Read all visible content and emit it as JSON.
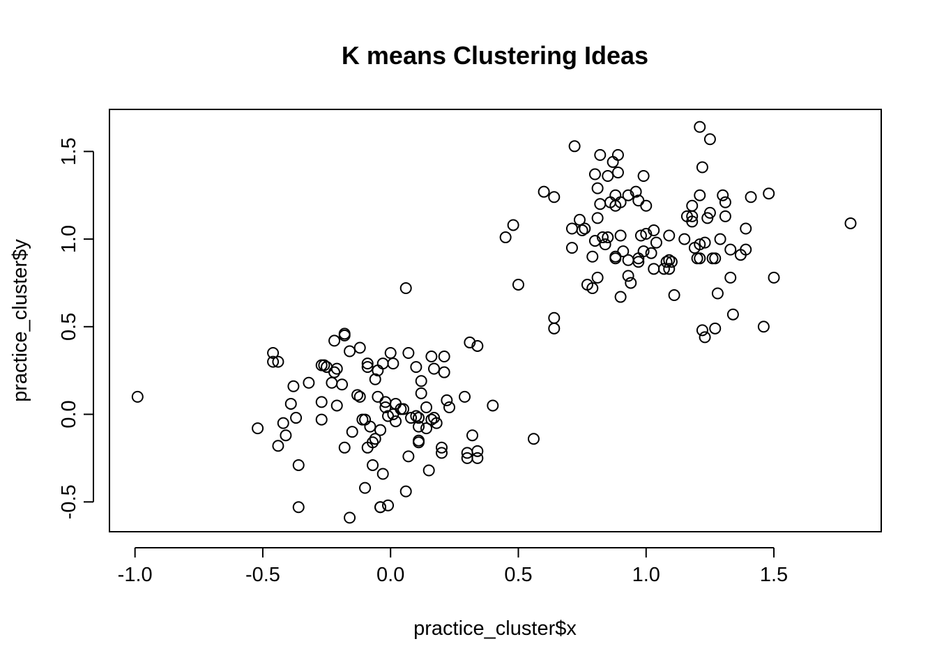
{
  "chart_data": {
    "type": "scatter",
    "title": "K means Clustering Ideas",
    "xlabel": "practice_cluster$x",
    "ylabel": "practice_cluster$y",
    "xlim": [
      -1.1,
      1.92
    ],
    "ylim": [
      -0.67,
      1.74
    ],
    "x_ticks": [
      "-1.0",
      "-0.5",
      "0.0",
      "0.5",
      "1.0",
      "1.5"
    ],
    "x_tick_values": [
      -1.0,
      -0.5,
      0.0,
      0.5,
      1.0,
      1.5
    ],
    "y_ticks": [
      "-0.5",
      "0.0",
      "0.5",
      "1.0",
      "1.5"
    ],
    "y_tick_values": [
      -0.5,
      0.0,
      0.5,
      1.0,
      1.5
    ],
    "grid": false,
    "marker": "open-circle",
    "series": [
      {
        "values": [
          [
            -0.99,
            0.1
          ],
          [
            -0.52,
            -0.08
          ],
          [
            -0.46,
            0.35
          ],
          [
            -0.46,
            0.3
          ],
          [
            -0.44,
            0.3
          ],
          [
            -0.44,
            -0.18
          ],
          [
            -0.42,
            -0.05
          ],
          [
            -0.41,
            -0.12
          ],
          [
            -0.39,
            0.06
          ],
          [
            -0.38,
            0.16
          ],
          [
            -0.37,
            -0.02
          ],
          [
            -0.36,
            -0.29
          ],
          [
            -0.36,
            -0.53
          ],
          [
            -0.32,
            0.18
          ],
          [
            -0.27,
            0.28
          ],
          [
            -0.27,
            0.07
          ],
          [
            -0.27,
            -0.03
          ],
          [
            -0.26,
            0.28
          ],
          [
            -0.25,
            0.27
          ],
          [
            -0.23,
            0.18
          ],
          [
            -0.22,
            0.42
          ],
          [
            -0.22,
            0.24
          ],
          [
            -0.21,
            0.26
          ],
          [
            -0.21,
            0.05
          ],
          [
            -0.19,
            0.17
          ],
          [
            -0.18,
            0.46
          ],
          [
            -0.18,
            0.45
          ],
          [
            -0.18,
            -0.19
          ],
          [
            -0.16,
            0.36
          ],
          [
            -0.16,
            -0.59
          ],
          [
            -0.15,
            -0.1
          ],
          [
            -0.13,
            0.11
          ],
          [
            -0.12,
            0.1
          ],
          [
            -0.12,
            0.38
          ],
          [
            -0.11,
            -0.03
          ],
          [
            -0.1,
            -0.42
          ],
          [
            -0.1,
            -0.03
          ],
          [
            -0.09,
            0.27
          ],
          [
            -0.09,
            0.29
          ],
          [
            -0.09,
            -0.19
          ],
          [
            -0.08,
            -0.07
          ],
          [
            -0.07,
            -0.16
          ],
          [
            -0.07,
            -0.29
          ],
          [
            -0.06,
            0.2
          ],
          [
            -0.06,
            -0.14
          ],
          [
            -0.05,
            0.25
          ],
          [
            -0.05,
            0.1
          ],
          [
            -0.04,
            -0.09
          ],
          [
            -0.04,
            -0.53
          ],
          [
            -0.04,
            -0.53
          ],
          [
            -0.03,
            -0.34
          ],
          [
            -0.03,
            0.29
          ],
          [
            -0.02,
            0.04
          ],
          [
            -0.02,
            0.07
          ],
          [
            -0.01,
            -0.01
          ],
          [
            -0.01,
            -0.52
          ],
          [
            0.0,
            0.35
          ],
          [
            0.01,
            0.0
          ],
          [
            0.01,
            0.29
          ],
          [
            0.02,
            -0.04
          ],
          [
            0.02,
            0.06
          ],
          [
            0.04,
            0.03
          ],
          [
            0.05,
            0.03
          ],
          [
            0.06,
            -0.44
          ],
          [
            0.06,
            0.72
          ],
          [
            0.07,
            -0.24
          ],
          [
            0.07,
            0.35
          ],
          [
            0.08,
            -0.02
          ],
          [
            0.1,
            0.27
          ],
          [
            0.1,
            -0.01
          ],
          [
            0.11,
            -0.02
          ],
          [
            0.11,
            -0.07
          ],
          [
            0.11,
            -0.15
          ],
          [
            0.11,
            -0.16
          ],
          [
            0.12,
            0.19
          ],
          [
            0.12,
            0.12
          ],
          [
            0.14,
            -0.08
          ],
          [
            0.14,
            0.04
          ],
          [
            0.15,
            -0.32
          ],
          [
            0.16,
            0.33
          ],
          [
            0.16,
            -0.03
          ],
          [
            0.17,
            0.26
          ],
          [
            0.17,
            -0.02
          ],
          [
            0.18,
            -0.05
          ],
          [
            0.2,
            -0.19
          ],
          [
            0.2,
            -0.22
          ],
          [
            0.21,
            0.24
          ],
          [
            0.21,
            0.33
          ],
          [
            0.22,
            0.08
          ],
          [
            0.23,
            0.04
          ],
          [
            0.29,
            0.1
          ],
          [
            0.3,
            -0.22
          ],
          [
            0.3,
            -0.25
          ],
          [
            0.31,
            0.41
          ],
          [
            0.32,
            -0.12
          ],
          [
            0.34,
            0.39
          ],
          [
            0.34,
            -0.21
          ],
          [
            0.34,
            -0.25
          ],
          [
            0.4,
            0.05
          ],
          [
            0.56,
            -0.14
          ],
          [
            0.45,
            1.01
          ],
          [
            0.48,
            1.08
          ],
          [
            0.5,
            0.74
          ],
          [
            0.6,
            1.27
          ],
          [
            0.64,
            1.24
          ],
          [
            0.64,
            0.49
          ],
          [
            0.64,
            0.55
          ],
          [
            0.71,
            1.06
          ],
          [
            0.71,
            0.95
          ],
          [
            0.72,
            1.53
          ],
          [
            0.74,
            1.11
          ],
          [
            0.75,
            1.05
          ],
          [
            0.76,
            1.06
          ],
          [
            0.77,
            0.74
          ],
          [
            0.79,
            0.72
          ],
          [
            0.79,
            0.9
          ],
          [
            0.8,
            0.99
          ],
          [
            0.8,
            1.37
          ],
          [
            0.81,
            1.29
          ],
          [
            0.81,
            1.12
          ],
          [
            0.81,
            0.78
          ],
          [
            0.82,
            1.48
          ],
          [
            0.82,
            1.2
          ],
          [
            0.83,
            1.01
          ],
          [
            0.84,
            0.97
          ],
          [
            0.85,
            1.01
          ],
          [
            0.85,
            1.36
          ],
          [
            0.86,
            1.21
          ],
          [
            0.87,
            1.44
          ],
          [
            0.88,
            1.25
          ],
          [
            0.88,
            1.19
          ],
          [
            0.88,
            0.9
          ],
          [
            0.88,
            0.89
          ],
          [
            0.89,
            1.48
          ],
          [
            0.89,
            1.38
          ],
          [
            0.9,
            0.67
          ],
          [
            0.9,
            1.21
          ],
          [
            0.9,
            1.02
          ],
          [
            0.91,
            0.93
          ],
          [
            0.93,
            1.25
          ],
          [
            0.93,
            0.88
          ],
          [
            0.93,
            0.79
          ],
          [
            0.94,
            0.75
          ],
          [
            0.96,
            1.27
          ],
          [
            0.97,
            0.87
          ],
          [
            0.97,
            0.89
          ],
          [
            0.97,
            1.22
          ],
          [
            0.98,
            1.02
          ],
          [
            0.99,
            1.36
          ],
          [
            0.99,
            0.93
          ],
          [
            1.0,
            1.03
          ],
          [
            1.0,
            1.19
          ],
          [
            1.02,
            0.92
          ],
          [
            1.03,
            0.83
          ],
          [
            1.03,
            1.05
          ],
          [
            1.04,
            0.98
          ],
          [
            1.07,
            0.83
          ],
          [
            1.08,
            0.87
          ],
          [
            1.09,
            0.88
          ],
          [
            1.09,
            0.83
          ],
          [
            1.09,
            1.02
          ],
          [
            1.1,
            0.87
          ],
          [
            1.11,
            0.68
          ],
          [
            1.15,
            1.0
          ],
          [
            1.16,
            1.13
          ],
          [
            1.18,
            1.13
          ],
          [
            1.18,
            1.19
          ],
          [
            1.18,
            1.1
          ],
          [
            1.19,
            0.95
          ],
          [
            1.2,
            0.89
          ],
          [
            1.21,
            1.64
          ],
          [
            1.21,
            1.25
          ],
          [
            1.21,
            0.97
          ],
          [
            1.21,
            0.89
          ],
          [
            1.22,
            1.41
          ],
          [
            1.22,
            0.48
          ],
          [
            1.23,
            0.44
          ],
          [
            1.23,
            0.98
          ],
          [
            1.24,
            1.12
          ],
          [
            1.25,
            1.57
          ],
          [
            1.25,
            1.15
          ],
          [
            1.26,
            0.89
          ],
          [
            1.27,
            0.49
          ],
          [
            1.27,
            0.89
          ],
          [
            1.28,
            0.69
          ],
          [
            1.29,
            1.0
          ],
          [
            1.3,
            1.25
          ],
          [
            1.31,
            1.21
          ],
          [
            1.31,
            1.13
          ],
          [
            1.33,
            0.78
          ],
          [
            1.33,
            0.94
          ],
          [
            1.34,
            0.57
          ],
          [
            1.37,
            0.91
          ],
          [
            1.39,
            0.94
          ],
          [
            1.39,
            1.06
          ],
          [
            1.41,
            1.24
          ],
          [
            1.46,
            0.5
          ],
          [
            1.48,
            1.26
          ],
          [
            1.5,
            0.78
          ],
          [
            1.8,
            1.09
          ]
        ]
      }
    ]
  }
}
